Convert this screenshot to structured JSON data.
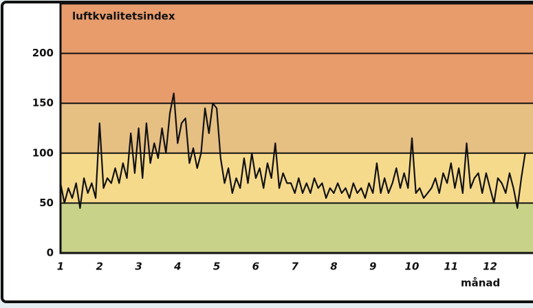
{
  "chart_data": {
    "type": "line",
    "title": "luftkvalitetsindex",
    "xlabel": "månad",
    "x": [
      1.0,
      1.1,
      1.2,
      1.3,
      1.4,
      1.5,
      1.6,
      1.7,
      1.8,
      1.9,
      2.0,
      2.1,
      2.2,
      2.3,
      2.4,
      2.5,
      2.6,
      2.7,
      2.8,
      2.9,
      3.0,
      3.1,
      3.2,
      3.3,
      3.4,
      3.5,
      3.6,
      3.7,
      3.8,
      3.9,
      4.0,
      4.1,
      4.2,
      4.3,
      4.4,
      4.5,
      4.6,
      4.7,
      4.8,
      4.9,
      5.0,
      5.1,
      5.2,
      5.3,
      5.4,
      5.5,
      5.6,
      5.7,
      5.8,
      5.9,
      6.0,
      6.1,
      6.2,
      6.3,
      6.4,
      6.5,
      6.6,
      6.7,
      6.8,
      6.9,
      7.0,
      7.1,
      7.2,
      7.3,
      7.4,
      7.5,
      7.6,
      7.7,
      7.8,
      7.9,
      8.0,
      8.1,
      8.2,
      8.3,
      8.4,
      8.5,
      8.6,
      8.7,
      8.8,
      8.9,
      9.0,
      9.1,
      9.2,
      9.3,
      9.4,
      9.5,
      9.6,
      9.7,
      9.8,
      9.9,
      10.0,
      10.1,
      10.2,
      10.3,
      10.4,
      10.5,
      10.6,
      10.7,
      10.8,
      10.9,
      11.0,
      11.1,
      11.2,
      11.3,
      11.4,
      11.5,
      11.6,
      11.7,
      11.8,
      11.9,
      12.0,
      12.1,
      12.2,
      12.3,
      12.4,
      12.5,
      12.6,
      12.7,
      12.8,
      12.9
    ],
    "series": [
      {
        "color": "#111111",
        "values": [
          70,
          50,
          65,
          55,
          70,
          45,
          75,
          60,
          70,
          55,
          130,
          65,
          75,
          70,
          85,
          70,
          90,
          75,
          120,
          80,
          125,
          75,
          130,
          90,
          110,
          95,
          125,
          100,
          140,
          160,
          110,
          130,
          135,
          90,
          105,
          85,
          100,
          145,
          120,
          150,
          145,
          95,
          70,
          85,
          60,
          75,
          65,
          95,
          70,
          100,
          75,
          85,
          65,
          90,
          75,
          110,
          65,
          80,
          70,
          70,
          60,
          75,
          60,
          70,
          60,
          75,
          65,
          70,
          55,
          65,
          60,
          70,
          60,
          65,
          55,
          70,
          60,
          65,
          55,
          70,
          60,
          90,
          60,
          75,
          60,
          70,
          85,
          65,
          80,
          65,
          115,
          60,
          65,
          55,
          60,
          65,
          75,
          60,
          80,
          70,
          90,
          65,
          85,
          60,
          110,
          65,
          75,
          80,
          60,
          80,
          65,
          50,
          75,
          70,
          60,
          80,
          65,
          45,
          75,
          100
        ]
      }
    ],
    "xlim": [
      1,
      13.1
    ],
    "xticks": [
      1,
      2,
      3,
      4,
      5,
      6,
      7,
      8,
      9,
      10,
      11,
      12
    ],
    "ylim": [
      0,
      250
    ],
    "yticks": [
      0,
      50,
      100,
      150,
      200
    ],
    "bands": [
      {
        "from": 0,
        "to": 50,
        "color": "#c8d389"
      },
      {
        "from": 50,
        "to": 100,
        "color": "#f6da8c"
      },
      {
        "from": 100,
        "to": 150,
        "color": "#e6bf83"
      },
      {
        "from": 150,
        "to": 250,
        "color": "#e89c6c"
      }
    ],
    "grid": true
  }
}
